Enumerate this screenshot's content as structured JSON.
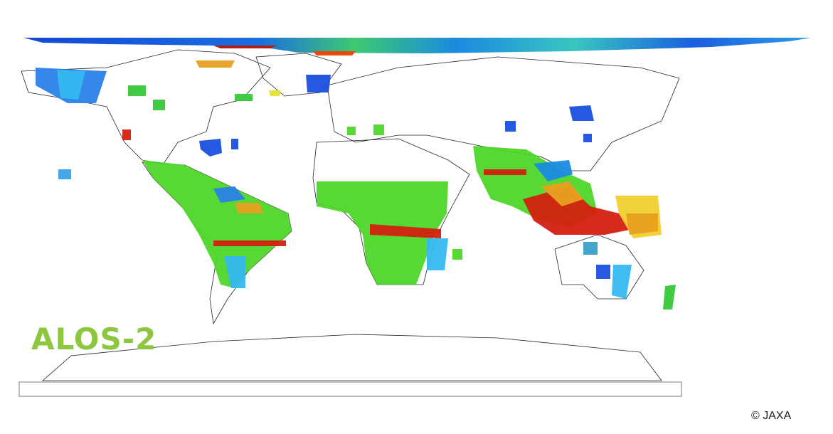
{
  "logo": {
    "text": "ALOS-2"
  },
  "credit": "© JAXA"
}
